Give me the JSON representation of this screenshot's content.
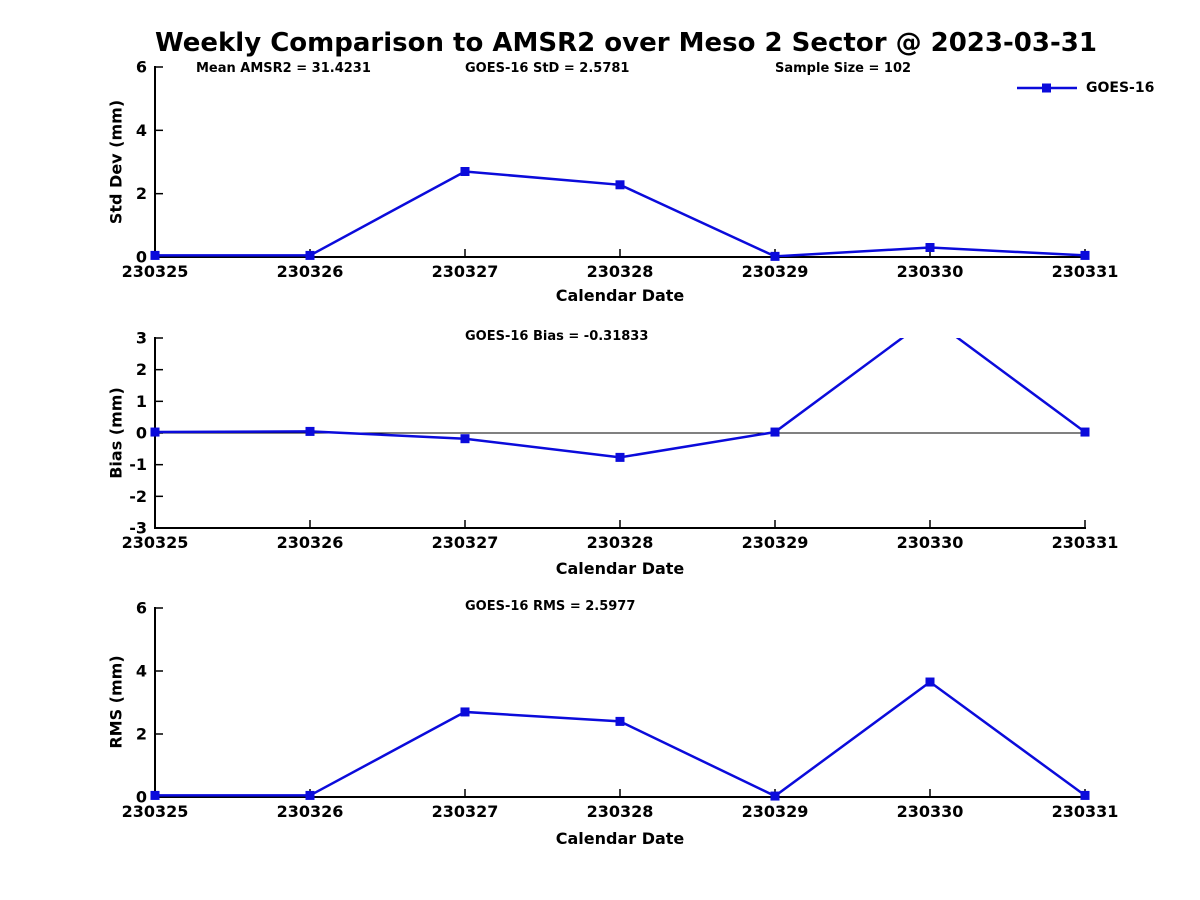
{
  "title": "Weekly Comparison to AMSR2 over Meso 2 Sector @ 2023-03-31",
  "legend": {
    "label": "GOES-16",
    "color": "#0b0bdb",
    "position": "top-right"
  },
  "line_color": "#0b0bdb",
  "axis_color": "#000000",
  "chart_data": [
    {
      "type": "line",
      "panel": "std-dev",
      "annotations": [
        {
          "text": "Mean AMSR2 = 31.4231"
        },
        {
          "text": "GOES-16 StD = 2.5781"
        },
        {
          "text": "Sample Size = 102"
        }
      ],
      "categories": [
        "230325",
        "230326",
        "230327",
        "230328",
        "230329",
        "230330",
        "230331"
      ],
      "series": [
        {
          "name": "GOES-16",
          "values": [
            0.05,
            0.05,
            2.7,
            2.28,
            0.02,
            0.3,
            0.05
          ]
        }
      ],
      "xlabel": "Calendar Date",
      "ylabel": "Std Dev (mm)",
      "ylim": [
        0,
        6
      ],
      "yticks": [
        0,
        2,
        4,
        6
      ],
      "zero_line": false,
      "grid": false,
      "legend_position": "top-right"
    },
    {
      "type": "line",
      "panel": "bias",
      "annotations": [
        {
          "text": "GOES-16 Bias  = -0.31833"
        }
      ],
      "categories": [
        "230325",
        "230326",
        "230327",
        "230328",
        "230329",
        "230330",
        "230331"
      ],
      "series": [
        {
          "name": "GOES-16",
          "values": [
            0.03,
            0.05,
            -0.18,
            -0.77,
            0.03,
            3.65,
            0.03
          ]
        }
      ],
      "xlabel": "Calendar Date",
      "ylabel": "Bias (mm)",
      "ylim": [
        -3,
        3
      ],
      "yticks": [
        -3,
        -2,
        -1,
        0,
        1,
        2,
        3
      ],
      "zero_line": true,
      "grid": false,
      "legend_position": "none",
      "note": "peak at 230330 exceeds +3 and is clipped by the axis"
    },
    {
      "type": "line",
      "panel": "rms",
      "annotations": [
        {
          "text": "GOES-16 RMS = 2.5977"
        }
      ],
      "categories": [
        "230325",
        "230326",
        "230327",
        "230328",
        "230329",
        "230330",
        "230331"
      ],
      "series": [
        {
          "name": "GOES-16",
          "values": [
            0.05,
            0.05,
            2.7,
            2.4,
            0.03,
            3.65,
            0.05
          ]
        }
      ],
      "xlabel": "Calendar Date",
      "ylabel": "RMS (mm)",
      "ylim": [
        0,
        6
      ],
      "yticks": [
        0,
        2,
        4,
        6
      ],
      "zero_line": false,
      "grid": false,
      "legend_position": "none"
    }
  ]
}
